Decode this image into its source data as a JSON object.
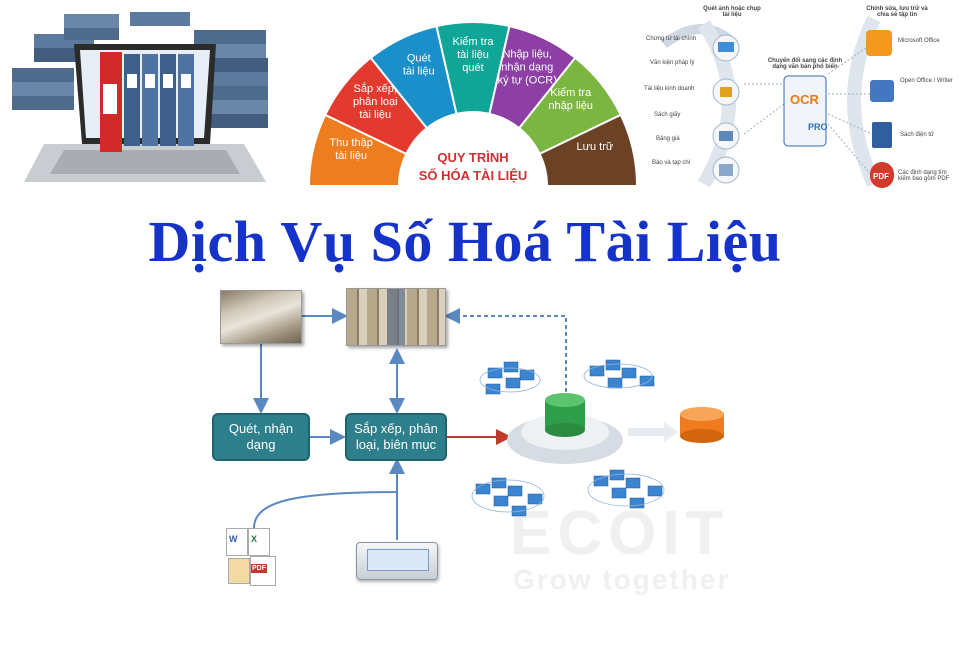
{
  "main_title": "Dịch Vụ Số Hoá Tài Liệu",
  "process": {
    "title_line1": "QUY TRÌNH",
    "title_line2": "SỐ HÓA TÀI LIỆU",
    "steps": [
      {
        "line1": "Thu thập",
        "line2": "tài liệu",
        "color": "#ee7d1f"
      },
      {
        "line1": "Sắp xếp,",
        "line2": "phân loại",
        "line3": "tài liệu",
        "color": "#e33a2f"
      },
      {
        "line1": "Quét",
        "line2": "tài liệu",
        "color": "#1a8fc9"
      },
      {
        "line1": "Kiểm tra",
        "line2": "tài liệu",
        "line3": "quét",
        "color": "#10a697"
      },
      {
        "line1": "Nhập liệu,",
        "line2": "nhận dạng",
        "line3": "ký tự (OCR)",
        "color": "#8d3fa6"
      },
      {
        "line1": "Kiểm tra",
        "line2": "nhập liệu",
        "color": "#7bb542"
      },
      {
        "line1": "Lưu trữ",
        "color": "#6b4226"
      }
    ]
  },
  "conversion": {
    "top_left_title": "Quét ảnh hoặc chụp tài liệu",
    "top_right_title": "Chỉnh sửa, lưu trữ và chia sẻ tập tin",
    "center_text": "Chuyển đổi sang các định dạng văn bản phổ biến",
    "logo_text": "PRO",
    "left_items": [
      "Chứng từ tài chính",
      "Văn kiện pháp lý",
      "Tài liệu kinh doanh",
      "Sách giấy",
      "Bảng giá",
      "Báo và tạp chí"
    ],
    "right_items": [
      "Microsoft Office",
      "Open Office / Writer",
      "Sách điện tử",
      "Các định dạng tìm kiếm bao gồm PDF"
    ]
  },
  "flow": {
    "box_scan": "Quét, nhận dạng",
    "box_sort": "Sắp xếp, phân loại, biên mục",
    "file_icons": [
      "W",
      "X",
      "PDF"
    ]
  },
  "watermark": {
    "line1": "ECOIT",
    "line2": "Grow together"
  },
  "colors": {
    "title": "#1533c9",
    "box": "#2e7f8c",
    "arrow": "#5a88c0",
    "arrow_red": "#c0392b"
  }
}
